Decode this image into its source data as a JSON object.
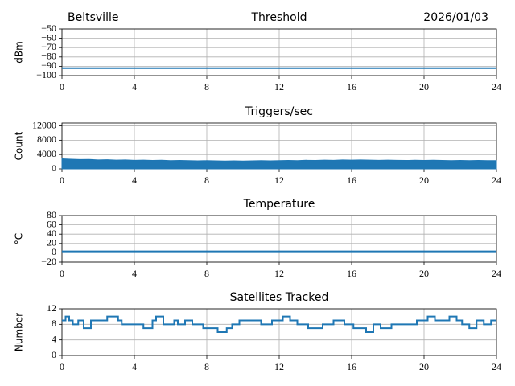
{
  "chart_data": [
    {
      "type": "line",
      "title": "Threshold",
      "location": "Beltsville",
      "date": "2026/01/03",
      "ylabel": "dBm",
      "x": [
        0,
        24
      ],
      "series": [
        {
          "color": "#1f77b4",
          "values": [
            -92,
            -92
          ]
        }
      ],
      "xlim": [
        0,
        24
      ],
      "xticks": [
        0,
        4,
        8,
        12,
        16,
        20,
        24
      ],
      "ylim": [
        -100,
        -50
      ],
      "yticks": [
        {
          "value": -100,
          "label": "−100"
        },
        {
          "value": -90,
          "label": "−90"
        },
        {
          "value": -80,
          "label": "−80"
        },
        {
          "value": -70,
          "label": "−70"
        },
        {
          "value": -60,
          "label": "−60"
        },
        {
          "value": -50,
          "label": "−50"
        }
      ],
      "grid": true
    },
    {
      "type": "area",
      "title": "Triggers/sec",
      "ylabel": "Count",
      "x": [
        0,
        0.5,
        1,
        1.5,
        2,
        2.5,
        3,
        3.5,
        4,
        4.5,
        5,
        5.5,
        6,
        6.5,
        7,
        7.5,
        8,
        8.5,
        9,
        9.5,
        10,
        10.5,
        11,
        11.5,
        12,
        12.5,
        13,
        13.5,
        14,
        14.5,
        15,
        15.5,
        16,
        16.5,
        17,
        17.5,
        18,
        18.5,
        19,
        19.5,
        20,
        20.5,
        21,
        21.5,
        22,
        22.5,
        23,
        23.5,
        24
      ],
      "series": [
        {
          "color": "#1f77b4",
          "values": [
            2800,
            2700,
            2600,
            2650,
            2500,
            2550,
            2450,
            2500,
            2400,
            2450,
            2350,
            2400,
            2300,
            2350,
            2300,
            2250,
            2300,
            2250,
            2200,
            2250,
            2200,
            2250,
            2300,
            2250,
            2300,
            2350,
            2300,
            2400,
            2350,
            2450,
            2400,
            2500,
            2450,
            2500,
            2450,
            2400,
            2450,
            2400,
            2350,
            2400,
            2350,
            2400,
            2350,
            2300,
            2350,
            2300,
            2350,
            2300,
            2300
          ]
        }
      ],
      "xlim": [
        0,
        24
      ],
      "xticks": [
        0,
        4,
        8,
        12,
        16,
        20,
        24
      ],
      "ylim": [
        0,
        12800
      ],
      "yticks": [
        0,
        4000,
        8000,
        12000
      ],
      "grid": true
    },
    {
      "type": "line",
      "title": "Temperature",
      "ylabel": "°C",
      "x": [
        0,
        24
      ],
      "series": [
        {
          "color": "#1f77b4",
          "values": [
            3,
            3
          ]
        }
      ],
      "xlim": [
        0,
        24
      ],
      "xticks": [
        0,
        4,
        8,
        12,
        16,
        20,
        24
      ],
      "ylim": [
        -20,
        80
      ],
      "yticks": [
        {
          "value": -20,
          "label": "−20"
        },
        0,
        20,
        40,
        60,
        80
      ],
      "grid": true
    },
    {
      "type": "line",
      "drawstyle": "steps-post",
      "title": "Satellites Tracked",
      "ylabel": "Number",
      "x": [
        0,
        0.2,
        0.4,
        0.6,
        0.9,
        1.2,
        1.6,
        2.3,
        2.5,
        3.1,
        3.3,
        4.1,
        4.5,
        5.0,
        5.2,
        5.6,
        6.2,
        6.4,
        6.8,
        7.2,
        7.8,
        8.6,
        9.1,
        9.4,
        9.8,
        10.6,
        11.0,
        11.6,
        12.2,
        12.6,
        13.0,
        13.6,
        14.4,
        15.0,
        15.6,
        16.1,
        16.8,
        17.2,
        17.6,
        18.2,
        19.0,
        19.6,
        20.2,
        20.6,
        21.4,
        21.8,
        22.1,
        22.5,
        22.9,
        23.3,
        23.7
      ],
      "series": [
        {
          "color": "#1f77b4",
          "values": [
            9,
            10,
            9,
            8,
            9,
            7,
            9,
            9,
            10,
            9,
            8,
            8,
            7,
            9,
            10,
            8,
            9,
            8,
            9,
            8,
            7,
            6,
            7,
            8,
            9,
            9,
            8,
            9,
            10,
            9,
            8,
            7,
            8,
            9,
            8,
            7,
            6,
            8,
            7,
            8,
            8,
            9,
            10,
            9,
            10,
            9,
            8,
            7,
            9,
            8,
            9
          ]
        }
      ],
      "xlim": [
        0,
        24
      ],
      "xticks": [
        0,
        4,
        8,
        12,
        16,
        20,
        24
      ],
      "ylim": [
        0,
        12
      ],
      "yticks": [
        0,
        4,
        8,
        12
      ],
      "grid": true
    }
  ]
}
